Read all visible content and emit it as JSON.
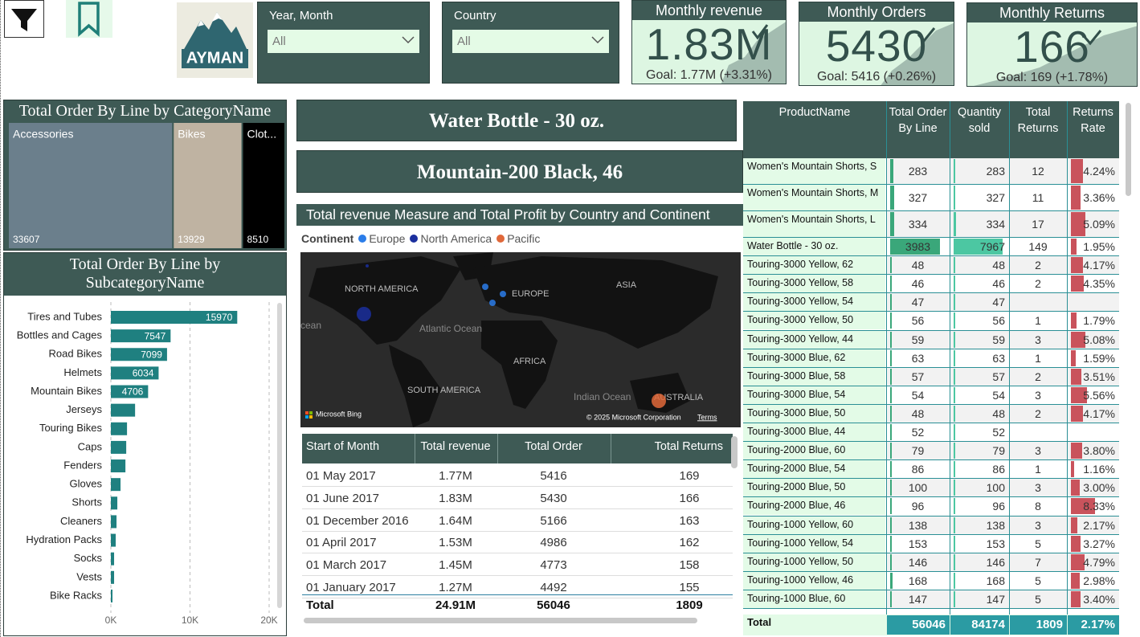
{
  "logo": {
    "text": "AYMAN"
  },
  "slicers": [
    {
      "label": "Year, Month",
      "value": "All"
    },
    {
      "label": "Country",
      "value": "All"
    }
  ],
  "kpis": [
    {
      "title": "Monthly revenue",
      "value": "1.83M",
      "goal": "Goal: 1.77M (+3.31%)"
    },
    {
      "title": "Monthly Orders",
      "value": "5430",
      "goal": "Goal: 5416 (+0.26%)"
    },
    {
      "title": "Monthly Returns",
      "value": "166",
      "goal": "Goal: 169 (+1.78%)"
    }
  ],
  "chart_data": [
    {
      "type": "treemap",
      "title": "Total Order By Line by CategoryName",
      "categories": [
        "Accessories",
        "Bikes",
        "Clot..."
      ],
      "values": [
        33607,
        13929,
        8510
      ],
      "colors": [
        "#6b7f8c",
        "#bfb3a2",
        "#000000"
      ]
    },
    {
      "type": "bar",
      "orientation": "horizontal",
      "title": "Total Order By Line by SubcategoryName",
      "categories": [
        "Tires and Tubes",
        "Bottles and Cages",
        "Road Bikes",
        "Helmets",
        "Mountain Bikes",
        "Jerseys",
        "Touring Bikes",
        "Caps",
        "Fenders",
        "Gloves",
        "Shorts",
        "Cleaners",
        "Hydration Packs",
        "Socks",
        "Vests",
        "Bike Racks"
      ],
      "values": [
        15970,
        7547,
        7099,
        6034,
        4706,
        3060,
        2040,
        1940,
        1840,
        1220,
        816,
        714,
        612,
        408,
        408,
        204
      ],
      "value_labels": [
        "15970",
        "7547",
        "7099",
        "6034",
        "4706",
        null,
        null,
        null,
        null,
        null,
        null,
        null,
        null,
        null,
        null,
        null
      ],
      "color": "#1f8080",
      "xlim": [
        0,
        20000
      ],
      "xticks": [
        {
          "value": 0,
          "label": "0K"
        },
        {
          "value": 10000,
          "label": "10K"
        },
        {
          "value": 20000,
          "label": "20K"
        }
      ],
      "grid": true
    }
  ],
  "cards": [
    "Water Bottle - 30 oz.",
    "Mountain-200 Black, 46"
  ],
  "map": {
    "title": "Total revenue Measure and Total Profit by Country and Continent",
    "legend_title": "Continent",
    "legend": [
      {
        "name": "Europe",
        "color": "#2b7de9"
      },
      {
        "name": "North America",
        "color": "#1b2f9e"
      },
      {
        "name": "Pacific",
        "color": "#e0683a"
      }
    ],
    "labels": [
      "NORTH AMERICA",
      "EUROPE",
      "ASIA",
      "Atlantic Ocean",
      "AFRICA",
      "SOUTH AMERICA",
      "Indian Ocean",
      "AUSTRALIA",
      "cean"
    ],
    "attribution": "Microsoft Bing",
    "copyright": "© 2025 Microsoft Corporation",
    "terms": "Terms"
  },
  "date_table": {
    "columns": [
      "Start of Month",
      "Total revenue",
      "Total Order",
      "Total Returns"
    ],
    "rows": [
      [
        "01 May 2017",
        "1.77M",
        "5416",
        "169"
      ],
      [
        "01 June 2017",
        "1.83M",
        "5430",
        "166"
      ],
      [
        "01 December 2016",
        "1.64M",
        "5166",
        "163"
      ],
      [
        "01 April 2017",
        "1.53M",
        "4986",
        "162"
      ],
      [
        "01 March 2017",
        "1.45M",
        "4773",
        "158"
      ],
      [
        "01 January 2017",
        "1.27M",
        "4492",
        "155"
      ]
    ],
    "total": [
      "Total",
      "24.91M",
      "56046",
      "1809"
    ]
  },
  "product_table": {
    "columns": [
      "ProductName",
      "Total Order By Line",
      "Quantity sold",
      "Total Returns",
      "Returns Rate"
    ],
    "rows": [
      [
        "Women's Mountain Shorts, S",
        283,
        283,
        12,
        {
          "value": 4.24,
          "label": "4.24%"
        }
      ],
      [
        "Women's Mountain Shorts, M",
        327,
        327,
        11,
        {
          "value": 3.36,
          "label": "3.36%"
        }
      ],
      [
        "Women's Mountain Shorts, L",
        334,
        334,
        17,
        {
          "value": 5.09,
          "label": "5.09%"
        }
      ],
      [
        "Water Bottle - 30 oz.",
        3983,
        7967,
        149,
        {
          "value": 1.95,
          "label": "1.95%"
        }
      ],
      [
        "Touring-3000 Yellow, 62",
        48,
        48,
        2,
        {
          "value": 4.17,
          "label": "4.17%"
        }
      ],
      [
        "Touring-3000 Yellow, 58",
        46,
        46,
        2,
        {
          "value": 4.35,
          "label": "4.35%"
        }
      ],
      [
        "Touring-3000 Yellow, 54",
        47,
        47,
        null,
        null
      ],
      [
        "Touring-3000 Yellow, 50",
        56,
        56,
        1,
        {
          "value": 1.79,
          "label": "1.79%"
        }
      ],
      [
        "Touring-3000 Yellow, 44",
        59,
        59,
        3,
        {
          "value": 5.08,
          "label": "5.08%"
        }
      ],
      [
        "Touring-3000 Blue, 62",
        63,
        63,
        1,
        {
          "value": 1.59,
          "label": "1.59%"
        }
      ],
      [
        "Touring-3000 Blue, 58",
        57,
        57,
        2,
        {
          "value": 3.51,
          "label": "3.51%"
        }
      ],
      [
        "Touring-3000 Blue, 54",
        54,
        54,
        3,
        {
          "value": 5.56,
          "label": "5.56%"
        }
      ],
      [
        "Touring-3000 Blue, 50",
        48,
        48,
        2,
        {
          "value": 4.17,
          "label": "4.17%"
        }
      ],
      [
        "Touring-3000 Blue, 44",
        52,
        52,
        null,
        null
      ],
      [
        "Touring-2000 Blue, 60",
        79,
        79,
        3,
        {
          "value": 3.8,
          "label": "3.80%"
        }
      ],
      [
        "Touring-2000 Blue, 54",
        86,
        86,
        1,
        {
          "value": 1.16,
          "label": "1.16%"
        }
      ],
      [
        "Touring-2000 Blue, 50",
        100,
        100,
        3,
        {
          "value": 3,
          "label": "3.00%"
        }
      ],
      [
        "Touring-2000 Blue, 46",
        96,
        96,
        8,
        {
          "value": 8.33,
          "label": "8.33%"
        }
      ],
      [
        "Touring-1000 Yellow, 60",
        138,
        138,
        3,
        {
          "value": 2.17,
          "label": "2.17%"
        }
      ],
      [
        "Touring-1000 Yellow, 54",
        153,
        153,
        5,
        {
          "value": 3.27,
          "label": "3.27%"
        }
      ],
      [
        "Touring-1000 Yellow, 50",
        146,
        146,
        7,
        {
          "value": 4.79,
          "label": "4.79%"
        }
      ],
      [
        "Touring-1000 Yellow, 46",
        168,
        168,
        5,
        {
          "value": 2.98,
          "label": "2.98%"
        }
      ],
      [
        "Touring-1000 Blue, 60",
        147,
        147,
        5,
        {
          "value": 3.4,
          "label": "3.40%"
        }
      ]
    ],
    "total": [
      "Total",
      "56046",
      "84174",
      "1809",
      "2.17%"
    ]
  }
}
